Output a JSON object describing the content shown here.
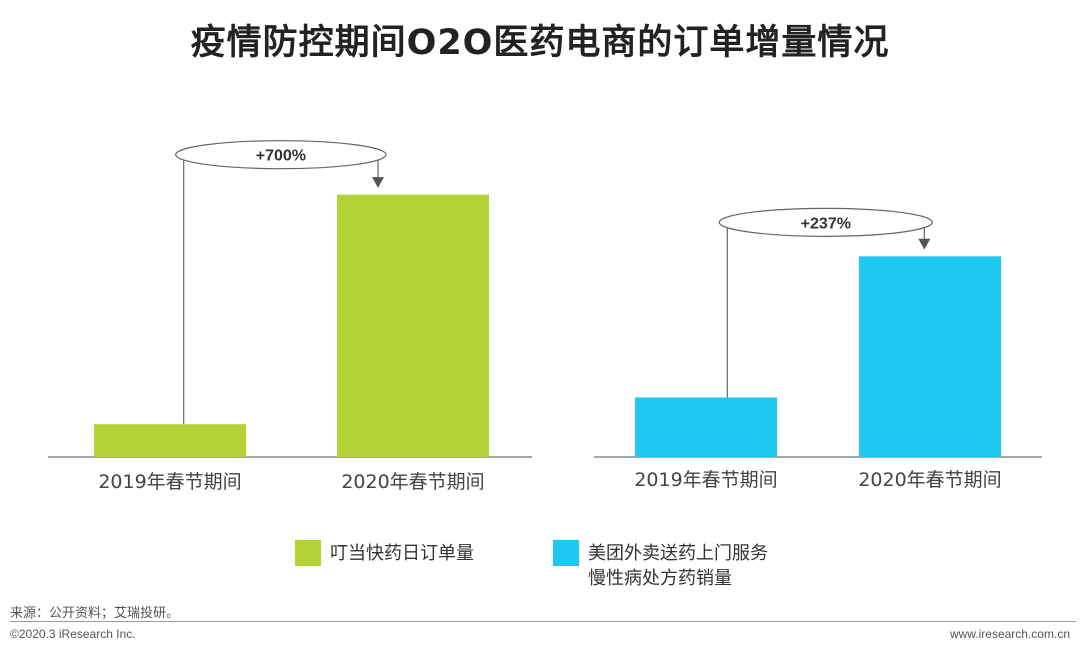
{
  "title": "疫情防控期间O2O医药电商的订单增量情况",
  "chart_data": [
    {
      "type": "bar",
      "categories": [
        "2019年春节期间",
        "2020年春节期间"
      ],
      "series": [
        {
          "name": "叮当快药日订单量",
          "values": [
            1,
            8
          ]
        }
      ],
      "annotation": "+700%",
      "color": "#b2d235",
      "ylim": [
        0,
        8.6
      ]
    },
    {
      "type": "bar",
      "categories": [
        "2019年春节期间",
        "2020年春节期间"
      ],
      "series": [
        {
          "name": "美团外卖送药上门服务慢性病处方药销量",
          "values": [
            1,
            3.37
          ]
        }
      ],
      "annotation": "+237%",
      "color": "#1ec8f0",
      "ylim": [
        0,
        3.93
      ]
    }
  ],
  "legend": [
    {
      "lines": [
        "叮当快药日订单量"
      ],
      "color": "#b2d235"
    },
    {
      "lines": [
        "美团外卖送药上门服务",
        "慢性病处方药销量"
      ],
      "color": "#1ec8f0"
    }
  ],
  "source": "来源：公开资料；艾瑞投研。",
  "copyright": "©2020.3 iResearch Inc.",
  "website": "www.iresearch.com.cn"
}
